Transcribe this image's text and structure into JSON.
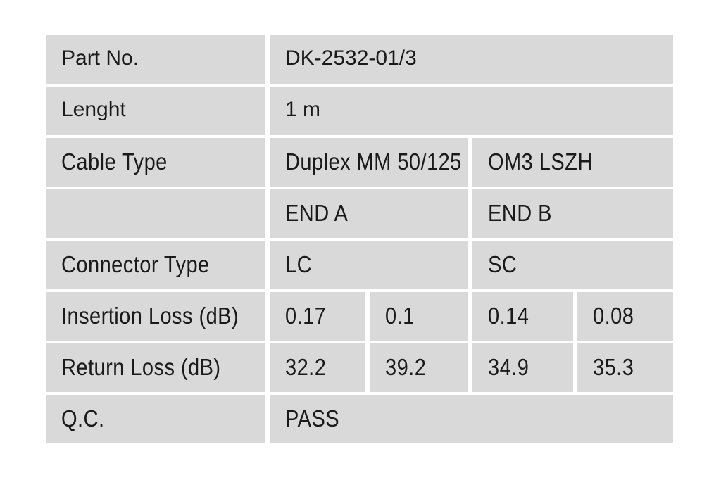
{
  "report": {
    "rows": [
      {
        "label": "Part No.",
        "value": "DK-2532-01/3"
      },
      {
        "label": "Lenght",
        "value": "1 m"
      },
      {
        "label": "Cable Type",
        "value_a": "Duplex MM 50/125",
        "value_b": "OM3 LSZH"
      },
      {
        "label": "",
        "value_a": "END A",
        "value_b": "END B"
      },
      {
        "label": "Connector Type",
        "value_a": "LC",
        "value_b": "SC"
      },
      {
        "label": "Insertion Loss (dB)",
        "values": [
          "0.17",
          "0.1",
          "0.14",
          "0.08"
        ]
      },
      {
        "label": "Return Loss (dB)",
        "values": [
          "32.2",
          "39.2",
          "34.9",
          "35.3"
        ]
      },
      {
        "label": "Q.C.",
        "value": "PASS"
      }
    ]
  },
  "colors": {
    "cell_bg": "#d9d9d9",
    "page_bg": "#ffffff",
    "text": "#1a1a1a"
  }
}
